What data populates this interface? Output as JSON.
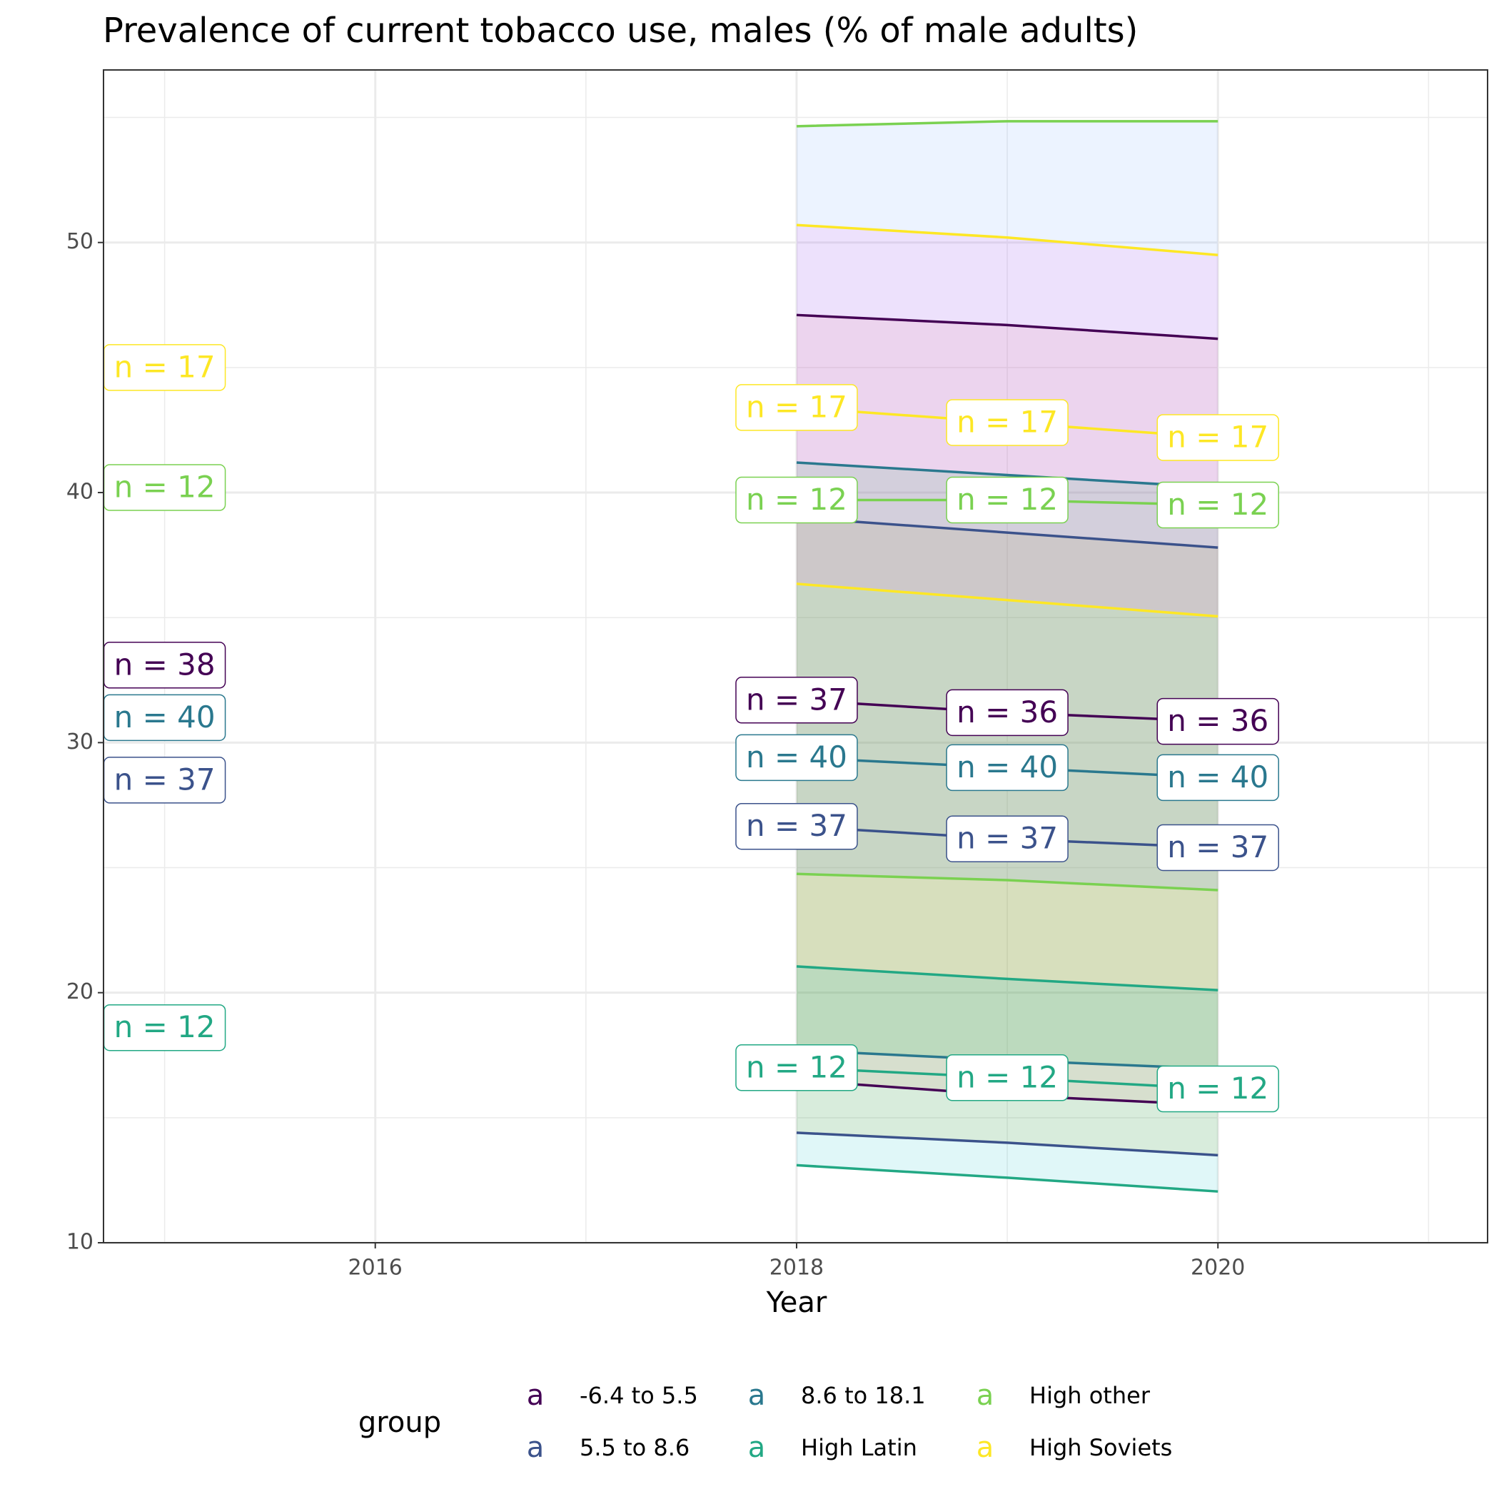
{
  "chart_data": {
    "type": "line",
    "title": "Prevalence of current tobacco use, males (% of male adults)",
    "x_label": "Year",
    "legend_title": "group",
    "legend_key_glyph": "a",
    "legend_position": "bottom",
    "x": [
      2018,
      2019,
      2020
    ],
    "xlim": [
      2014.71,
      2021.28
    ],
    "xticks": [
      2016,
      2018,
      2020
    ],
    "x_minor_ticks": [
      2015,
      2017,
      2019,
      2021
    ],
    "ylim": [
      10,
      56.9
    ],
    "yticks": [
      10,
      20,
      30,
      40,
      50
    ],
    "y_minor_ticks": [
      15,
      25,
      35,
      45,
      55
    ],
    "grid": true,
    "series": [
      {
        "name": "-6.4 to 5.5",
        "color": "#440154",
        "fill": "#F8766D",
        "values": [
          31.7,
          31.2,
          30.85
        ],
        "upper": [
          47.1,
          46.7,
          46.15
        ],
        "lower": [
          16.5,
          15.9,
          15.5
        ],
        "labels": [
          "n = 37",
          "n = 36",
          "n = 36"
        ]
      },
      {
        "name": "5.5 to 8.6",
        "color": "#3b528b",
        "fill": "#B79F00",
        "values": [
          26.65,
          26.15,
          25.8
        ],
        "upper": [
          39.0,
          38.4,
          37.8
        ],
        "lower": [
          14.4,
          14.0,
          13.5
        ],
        "labels": [
          "n = 37",
          "n = 37",
          "n = 37"
        ]
      },
      {
        "name": "8.6 to 18.1",
        "color": "#2a788e",
        "fill": "#00BA38",
        "values": [
          29.4,
          29.0,
          28.6
        ],
        "upper": [
          41.2,
          40.7,
          40.2
        ],
        "lower": [
          17.7,
          17.3,
          16.95
        ],
        "labels": [
          "n = 40",
          "n = 40",
          "n = 40"
        ]
      },
      {
        "name": "High Latin",
        "color": "#22a884",
        "fill": "#00BFC4",
        "values": [
          17.0,
          16.6,
          16.15
        ],
        "upper": [
          21.05,
          20.55,
          20.1
        ],
        "lower": [
          13.1,
          12.6,
          12.05
        ],
        "labels": [
          "n = 12",
          "n = 12",
          "n = 12"
        ]
      },
      {
        "name": "High other",
        "color": "#7ad151",
        "fill": "#619CFF",
        "values": [
          39.7,
          39.7,
          39.5
        ],
        "upper": [
          54.65,
          54.85,
          54.85
        ],
        "lower": [
          24.75,
          24.5,
          24.1
        ],
        "labels": [
          "n = 12",
          "n = 12",
          "n = 12"
        ]
      },
      {
        "name": "High Soviets",
        "color": "#fde725",
        "fill": "#F564E3",
        "values": [
          43.4,
          42.8,
          42.2
        ],
        "upper": [
          50.7,
          50.2,
          49.5
        ],
        "lower": [
          36.35,
          35.7,
          35.05
        ],
        "labels": [
          "n = 17",
          "n = 17",
          "n = 17"
        ]
      }
    ],
    "annotations": [
      {
        "x": 2015,
        "y": 45.0,
        "text": "n = 17",
        "series": 5
      },
      {
        "x": 2015,
        "y": 40.2,
        "text": "n = 12",
        "series": 4
      },
      {
        "x": 2015,
        "y": 33.1,
        "text": "n = 38",
        "series": 0
      },
      {
        "x": 2015,
        "y": 31.0,
        "text": "n = 40",
        "series": 2
      },
      {
        "x": 2015,
        "y": 28.5,
        "text": "n = 37",
        "series": 1
      },
      {
        "x": 2015,
        "y": 18.6,
        "text": "n = 12",
        "series": 3
      }
    ]
  }
}
